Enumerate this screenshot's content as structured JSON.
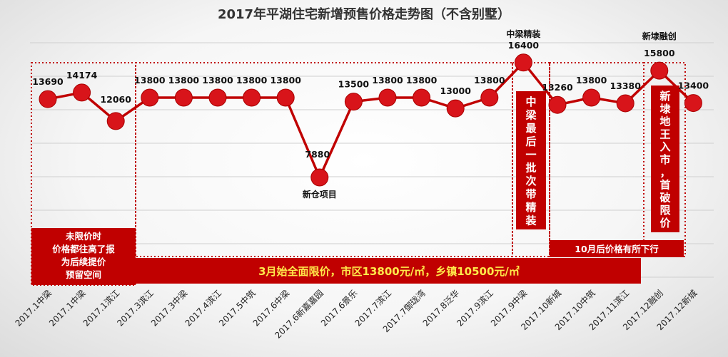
{
  "chart_data": {
    "type": "line",
    "title": "2017年平湖住宅新增预售价格走势图（不含别墅）",
    "categories": [
      "2017.1中梁",
      "2017.1中梁",
      "2017.1滨江",
      "2017.3滨江",
      "2017.3中梁",
      "2017.4滨江",
      "2017.5中筑",
      "2017.6中梁",
      "2017.6新嘉嘉园",
      "2017.6景乐",
      "2017.7滨江",
      "2017.7御珑湾",
      "2017.8泛华",
      "2017.9滨江",
      "2017.9中梁",
      "2017.10新城",
      "2017.10中筑",
      "2017.11滨江",
      "2017.12融创",
      "2017.12新城"
    ],
    "values": [
      13690,
      14174,
      12060,
      13800,
      13800,
      13800,
      13800,
      13800,
      7880,
      13500,
      13800,
      13800,
      13000,
      13800,
      16400,
      13260,
      13800,
      13380,
      15800,
      13400
    ],
    "value_labels": [
      "13690",
      "14174",
      "12060",
      "13800",
      "13800",
      "13800",
      "13800",
      "13800",
      "7880",
      "13500",
      "13800",
      "13800",
      "13000",
      "13800",
      "16400",
      "13260",
      "13800",
      "13380",
      "15800",
      "13400"
    ],
    "ylim": [
      0,
      17500
    ],
    "grid": true,
    "line_color": "#c00000",
    "marker_color": "#d8141a",
    "annotations": {
      "point_8": "新仓项目",
      "point_14": "中梁精装",
      "point_18": "新埭融创"
    },
    "boxes": {
      "box_1": "未限价时 价格都往高了报 为后续提价 预留空间",
      "box_1_lines": [
        "未限价时",
        "价格都往高了报",
        "为后续提价",
        "预留空间"
      ],
      "box_2": "3月始全面限价，市区13800元/㎡，乡镇10500元/㎡",
      "box_3_chars": [
        "中",
        "梁",
        "最",
        "后",
        "一",
        "批",
        "次",
        "带",
        "精",
        "装"
      ],
      "box_4": "10月后价格有所下行",
      "box_5_chars": [
        "新",
        "埭",
        "地",
        "王",
        "入",
        "市",
        "，",
        "首",
        "破",
        "限",
        "价"
      ]
    }
  }
}
